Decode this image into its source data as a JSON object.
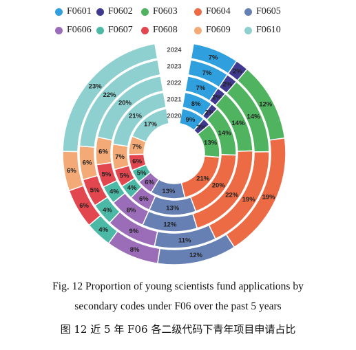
{
  "chart_data": {
    "type": "donut",
    "legend": [
      "F0601",
      "F0602",
      "F0603",
      "F0604",
      "F0605",
      "F0606",
      "F0607",
      "F0608",
      "F0609",
      "F0610"
    ],
    "colors": [
      "#2f9fde",
      "#3f3a8f",
      "#4fb35f",
      "#ec6b45",
      "#6680b4",
      "#9b6cb8",
      "#4bb9a6",
      "#e2464e",
      "#f3aa77",
      "#8dd0cf"
    ],
    "years": [
      "2024",
      "2023",
      "2022",
      "2021",
      "2020"
    ],
    "rings": [
      {
        "year": "2024",
        "values": [
          7,
          2,
          12,
          19,
          12,
          8,
          4,
          6,
          6,
          23
        ]
      },
      {
        "year": "2023",
        "values": [
          7,
          2,
          14,
          19,
          11,
          9,
          4,
          5,
          6,
          22
        ]
      },
      {
        "year": "2022",
        "values": [
          7,
          2,
          14,
          22,
          12,
          8,
          4,
          5,
          6,
          20
        ]
      },
      {
        "year": "2021",
        "values": [
          8,
          2,
          14,
          20,
          13,
          6,
          4,
          5,
          7,
          21
        ]
      },
      {
        "year": "2020",
        "values": [
          9,
          3,
          13,
          21,
          13,
          6,
          5,
          6,
          7,
          17
        ]
      }
    ],
    "unit": "%"
  },
  "caption": {
    "line1": "Fig. 12   Proportion of young scientists fund applications by",
    "line2": "secondary codes under F06 over the past 5 years",
    "line3": "图 12   近 5 年 F06 各二级代码下青年项目申请占比"
  }
}
